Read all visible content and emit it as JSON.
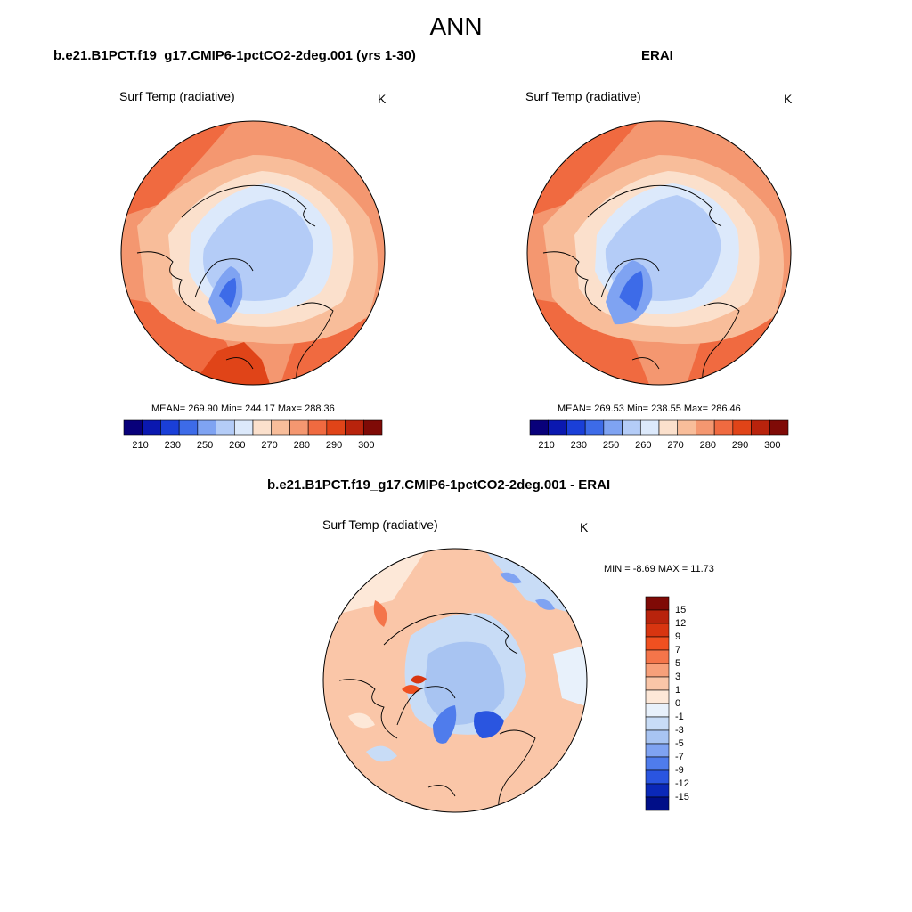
{
  "main_title": "ANN",
  "panels": [
    {
      "title": "b.e21.B1PCT.f19_g17.CMIP6-1pctCO2-2deg.001 (yrs 1-30)",
      "variable": "Surf Temp (radiative)",
      "units": "K",
      "stats": "MEAN= 269.90  Min= 244.17  Max= 288.36",
      "colorbar_ticks": [
        "210",
        "230",
        "250",
        "260",
        "270",
        "280",
        "290",
        "300"
      ]
    },
    {
      "title": "ERAI",
      "variable": "Surf Temp (radiative)",
      "units": "K",
      "stats": "MEAN= 269.53  Min= 238.55  Max= 286.46",
      "colorbar_ticks": [
        "210",
        "230",
        "250",
        "260",
        "270",
        "280",
        "290",
        "300"
      ]
    },
    {
      "title": "b.e21.B1PCT.f19_g17.CMIP6-1pctCO2-2deg.001 - ERAI",
      "variable": "Surf Temp (radiative)",
      "units": "K",
      "stats": "MIN =  -8.69 MAX =  11.73",
      "colorbar_ticks": [
        "15",
        "12",
        "9",
        "7",
        "5",
        "3",
        "1",
        "0",
        "-1",
        "-3",
        "-5",
        "-7",
        "-9",
        "-12",
        "-15"
      ]
    }
  ],
  "colors": {
    "abs_scale": [
      "#08007a",
      "#0a18b0",
      "#1a3fd8",
      "#3d6be8",
      "#7fa3f2",
      "#b4ccf7",
      "#dce9fb",
      "#fbe0cc",
      "#f8bd9a",
      "#f49770",
      "#f06a40",
      "#e04418",
      "#b8230c",
      "#7f0a06"
    ],
    "diff_scale": [
      "#7f0a06",
      "#b8230c",
      "#d83510",
      "#f05020",
      "#f4754a",
      "#f7a07a",
      "#fac6a8",
      "#fde8d8",
      "#e8f1fb",
      "#c8dcf6",
      "#a8c4f2",
      "#7fa3f2",
      "#4f7cec",
      "#2a55e0",
      "#0a28b8",
      "#000e88"
    ]
  }
}
